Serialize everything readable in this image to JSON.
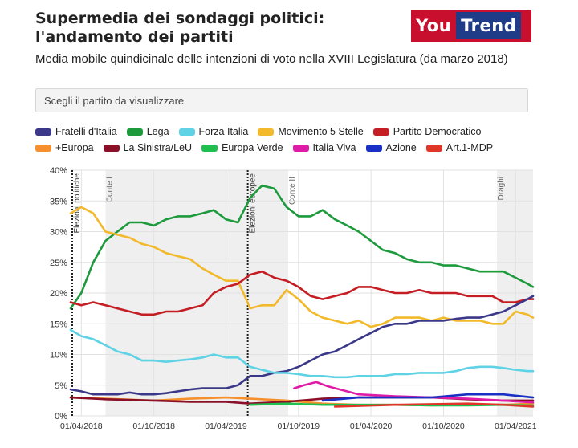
{
  "header": {
    "title": "Supermedia dei sondaggi politici: l'andamento dei partiti",
    "subtitle": "Media mobile quindicinale delle intenzioni di voto nella XVIII Legislatura (da marzo 2018)",
    "logo_left": "You",
    "logo_right": "Trend"
  },
  "party_select": {
    "placeholder": "Scegli il partito da visualizzare"
  },
  "colors": {
    "Fratelli d'Italia": "#3b3889",
    "Lega": "#1c9a3c",
    "Forza Italia": "#5fd2e6",
    "Movimento 5 Stelle": "#f2b92a",
    "Partito Democratico": "#c41e24",
    "+Europa": "#f5902c",
    "La Sinistra/LeU": "#8a1028",
    "Europa Verde": "#1fbf50",
    "Italia Viva": "#e01ba8",
    "Azione": "#1a2fc4",
    "Art.1-MDP": "#e0362a"
  },
  "chart_data": {
    "type": "line",
    "ylim": [
      0,
      40
    ],
    "xlim": [
      "2018-03-05",
      "2021-05-15"
    ],
    "y_ticks": [
      "0%",
      "5%",
      "10%",
      "15%",
      "20%",
      "25%",
      "30%",
      "35%",
      "40%"
    ],
    "y_tick_values": [
      0,
      5,
      10,
      15,
      20,
      25,
      30,
      35,
      40
    ],
    "x_ticks": [
      "01/04/2018",
      "01/10/2018",
      "01/04/2019",
      "01/10/2019",
      "01/04/2020",
      "01/10/2020",
      "01/04/2021"
    ],
    "x_tick_values": [
      "2018-04-01",
      "2018-10-01",
      "2019-04-01",
      "2019-10-01",
      "2020-04-01",
      "2020-10-01",
      "2021-04-01"
    ],
    "grid": true,
    "legend_position": "top",
    "events": [
      {
        "label": "Elezioni politiche",
        "date": "2018-03-04",
        "style": "dotted"
      },
      {
        "label": "Elezioni europee",
        "date": "2019-05-26",
        "style": "dotted"
      }
    ],
    "governments": [
      {
        "label": "Conte I",
        "start": "2018-06-01",
        "end": "2019-09-05"
      },
      {
        "label": "Conte II",
        "start": "2019-09-05",
        "end": "2021-02-13"
      },
      {
        "label": "Draghi",
        "start": "2021-02-13",
        "end": "2021-05-15"
      }
    ],
    "series": [
      {
        "name": "Lega",
        "x": [
          "2018-03-05",
          "2018-04-01",
          "2018-05-01",
          "2018-06-01",
          "2018-07-01",
          "2018-08-01",
          "2018-09-01",
          "2018-10-01",
          "2018-11-01",
          "2018-12-01",
          "2019-01-01",
          "2019-02-01",
          "2019-03-01",
          "2019-04-01",
          "2019-05-01",
          "2019-06-01",
          "2019-07-01",
          "2019-08-01",
          "2019-09-01",
          "2019-10-01",
          "2019-11-01",
          "2019-12-01",
          "2020-01-01",
          "2020-02-01",
          "2020-03-01",
          "2020-04-01",
          "2020-05-01",
          "2020-06-01",
          "2020-07-01",
          "2020-08-01",
          "2020-09-01",
          "2020-10-01",
          "2020-11-01",
          "2020-12-01",
          "2021-01-01",
          "2021-02-01",
          "2021-03-01",
          "2021-04-01",
          "2021-05-01",
          "2021-05-15"
        ],
        "values": [
          17.5,
          20,
          25,
          28.5,
          30,
          31.5,
          31.5,
          31,
          32,
          32.5,
          32.5,
          33,
          33.5,
          32,
          31.5,
          35.5,
          37.5,
          37,
          34,
          32.5,
          32.5,
          33.5,
          32,
          31,
          30,
          28.5,
          27,
          26.5,
          25.5,
          25,
          25,
          24.5,
          24.5,
          24,
          23.5,
          23.5,
          23.5,
          22.5,
          21.5,
          21
        ]
      },
      {
        "name": "Movimento 5 Stelle",
        "x": [
          "2018-03-05",
          "2018-04-01",
          "2018-05-01",
          "2018-06-01",
          "2018-07-01",
          "2018-08-01",
          "2018-09-01",
          "2018-10-01",
          "2018-11-01",
          "2018-12-01",
          "2019-01-01",
          "2019-02-01",
          "2019-03-01",
          "2019-04-01",
          "2019-05-01",
          "2019-06-01",
          "2019-07-01",
          "2019-08-01",
          "2019-09-01",
          "2019-10-01",
          "2019-11-01",
          "2019-12-01",
          "2020-01-01",
          "2020-02-01",
          "2020-03-01",
          "2020-04-01",
          "2020-05-01",
          "2020-06-01",
          "2020-07-01",
          "2020-08-01",
          "2020-09-01",
          "2020-10-01",
          "2020-11-01",
          "2020-12-01",
          "2021-01-01",
          "2021-02-01",
          "2021-03-01",
          "2021-04-01",
          "2021-05-01",
          "2021-05-15"
        ],
        "values": [
          33,
          34,
          33,
          30,
          29.5,
          29,
          28,
          27.5,
          26.5,
          26,
          25.5,
          24,
          23,
          22,
          22,
          17.5,
          18,
          18,
          20.5,
          19,
          17,
          16,
          15.5,
          15,
          15.5,
          14.5,
          15,
          16,
          16,
          16,
          15.5,
          16,
          15.5,
          15.5,
          15.5,
          15,
          15,
          17,
          16.5,
          16
        ]
      },
      {
        "name": "Partito Democratico",
        "x": [
          "2018-03-05",
          "2018-04-01",
          "2018-05-01",
          "2018-06-01",
          "2018-07-01",
          "2018-08-01",
          "2018-09-01",
          "2018-10-01",
          "2018-11-01",
          "2018-12-01",
          "2019-01-01",
          "2019-02-01",
          "2019-03-01",
          "2019-04-01",
          "2019-05-01",
          "2019-06-01",
          "2019-07-01",
          "2019-08-01",
          "2019-09-01",
          "2019-10-01",
          "2019-11-01",
          "2019-12-01",
          "2020-01-01",
          "2020-02-01",
          "2020-03-01",
          "2020-04-01",
          "2020-05-01",
          "2020-06-01",
          "2020-07-01",
          "2020-08-01",
          "2020-09-01",
          "2020-10-01",
          "2020-11-01",
          "2020-12-01",
          "2021-01-01",
          "2021-02-01",
          "2021-03-01",
          "2021-04-01",
          "2021-05-01",
          "2021-05-15"
        ],
        "values": [
          18.5,
          18,
          18.5,
          18,
          17.5,
          17,
          16.5,
          16.5,
          17,
          17,
          17.5,
          18,
          20,
          21,
          21.5,
          23,
          23.5,
          22.5,
          22,
          21,
          19.5,
          19,
          19.5,
          20,
          21,
          21,
          20.5,
          20,
          20,
          20.5,
          20,
          20,
          20,
          19.5,
          19.5,
          19.5,
          18.5,
          18.5,
          19,
          19
        ]
      },
      {
        "name": "Fratelli d'Italia",
        "x": [
          "2018-03-05",
          "2018-04-01",
          "2018-05-01",
          "2018-06-01",
          "2018-07-01",
          "2018-08-01",
          "2018-09-01",
          "2018-10-01",
          "2018-11-01",
          "2018-12-01",
          "2019-01-01",
          "2019-02-01",
          "2019-03-01",
          "2019-04-01",
          "2019-05-01",
          "2019-06-01",
          "2019-07-01",
          "2019-08-01",
          "2019-09-01",
          "2019-10-01",
          "2019-11-01",
          "2019-12-01",
          "2020-01-01",
          "2020-02-01",
          "2020-03-01",
          "2020-04-01",
          "2020-05-01",
          "2020-06-01",
          "2020-07-01",
          "2020-08-01",
          "2020-09-01",
          "2020-10-01",
          "2020-11-01",
          "2020-12-01",
          "2021-01-01",
          "2021-02-01",
          "2021-03-01",
          "2021-04-01",
          "2021-05-01",
          "2021-05-15"
        ],
        "values": [
          4.3,
          4,
          3.5,
          3.5,
          3.5,
          3.8,
          3.5,
          3.5,
          3.7,
          4,
          4.3,
          4.5,
          4.5,
          4.5,
          5,
          6.5,
          6.5,
          7,
          7.3,
          8,
          9,
          10,
          10.5,
          11.5,
          12.5,
          13.5,
          14.5,
          15,
          15,
          15.5,
          15.5,
          15.5,
          15.8,
          16,
          16,
          16.5,
          17,
          18,
          19,
          19.5
        ]
      },
      {
        "name": "Forza Italia",
        "x": [
          "2018-03-05",
          "2018-04-01",
          "2018-05-01",
          "2018-06-01",
          "2018-07-01",
          "2018-08-01",
          "2018-09-01",
          "2018-10-01",
          "2018-11-01",
          "2018-12-01",
          "2019-01-01",
          "2019-02-01",
          "2019-03-01",
          "2019-04-01",
          "2019-05-01",
          "2019-06-01",
          "2019-07-01",
          "2019-08-01",
          "2019-09-01",
          "2019-10-01",
          "2019-11-01",
          "2019-12-01",
          "2020-01-01",
          "2020-02-01",
          "2020-03-01",
          "2020-04-01",
          "2020-05-01",
          "2020-06-01",
          "2020-07-01",
          "2020-08-01",
          "2020-09-01",
          "2020-10-01",
          "2020-11-01",
          "2020-12-01",
          "2021-01-01",
          "2021-02-01",
          "2021-03-01",
          "2021-04-01",
          "2021-05-01",
          "2021-05-15"
        ],
        "values": [
          14,
          13,
          12.5,
          11.5,
          10.5,
          10,
          9,
          9,
          8.8,
          9,
          9.2,
          9.5,
          10,
          9.5,
          9.5,
          8,
          7.5,
          7,
          7,
          6.8,
          6.5,
          6.5,
          6.3,
          6.3,
          6.5,
          6.5,
          6.5,
          6.8,
          6.8,
          7,
          7,
          7,
          7.3,
          7.8,
          8,
          8,
          7.8,
          7.5,
          7.3,
          7.3
        ]
      },
      {
        "name": "+Europa",
        "x": [
          "2018-03-05",
          "2018-06-01",
          "2018-10-01",
          "2019-01-01",
          "2019-04-01",
          "2019-06-01",
          "2019-09-01",
          "2019-12-01",
          "2020-03-01",
          "2020-06-01",
          "2020-09-01",
          "2020-12-01",
          "2021-03-01",
          "2021-05-15"
        ],
        "values": [
          3,
          2.8,
          2.5,
          2.8,
          3,
          2.8,
          2.5,
          2,
          1.8,
          1.8,
          1.7,
          1.8,
          1.8,
          2
        ]
      },
      {
        "name": "La Sinistra/LeU",
        "x": [
          "2018-03-05",
          "2018-06-01",
          "2018-10-01",
          "2019-01-01",
          "2019-04-01",
          "2019-06-01",
          "2019-09-01",
          "2019-12-01",
          "2020-03-01",
          "2020-06-01",
          "2020-09-01",
          "2020-12-01",
          "2021-03-01",
          "2021-05-15"
        ],
        "values": [
          3,
          2.7,
          2.5,
          2.3,
          2.3,
          2,
          2.3,
          2.8,
          3,
          3,
          3,
          2.7,
          2.5,
          2.5
        ]
      },
      {
        "name": "Europa Verde",
        "x": [
          "2019-06-01",
          "2019-09-01",
          "2019-12-01",
          "2020-03-01",
          "2020-06-01",
          "2020-09-01",
          "2020-12-01",
          "2021-03-01",
          "2021-05-15"
        ],
        "values": [
          1.8,
          2,
          1.8,
          1.8,
          1.8,
          1.7,
          1.7,
          1.8,
          1.7
        ]
      },
      {
        "name": "Italia Viva",
        "x": [
          "2019-09-20",
          "2019-10-15",
          "2019-11-15",
          "2019-12-15",
          "2020-03-01",
          "2020-06-01",
          "2020-09-01",
          "2020-12-01",
          "2021-03-01",
          "2021-05-15"
        ],
        "values": [
          4.5,
          5,
          5.5,
          4.8,
          3.5,
          3.2,
          3,
          2.8,
          2.5,
          2.2
        ]
      },
      {
        "name": "Azione",
        "x": [
          "2019-12-01",
          "2020-03-01",
          "2020-06-01",
          "2020-09-01",
          "2020-12-01",
          "2021-03-01",
          "2021-05-15"
        ],
        "values": [
          2.5,
          3,
          3,
          3,
          3.5,
          3.5,
          3
        ]
      },
      {
        "name": "Art.1-MDP",
        "x": [
          "2020-01-01",
          "2020-06-01",
          "2020-12-01",
          "2021-03-01",
          "2021-05-15"
        ],
        "values": [
          1.5,
          1.8,
          2,
          1.8,
          1.5
        ]
      }
    ]
  }
}
